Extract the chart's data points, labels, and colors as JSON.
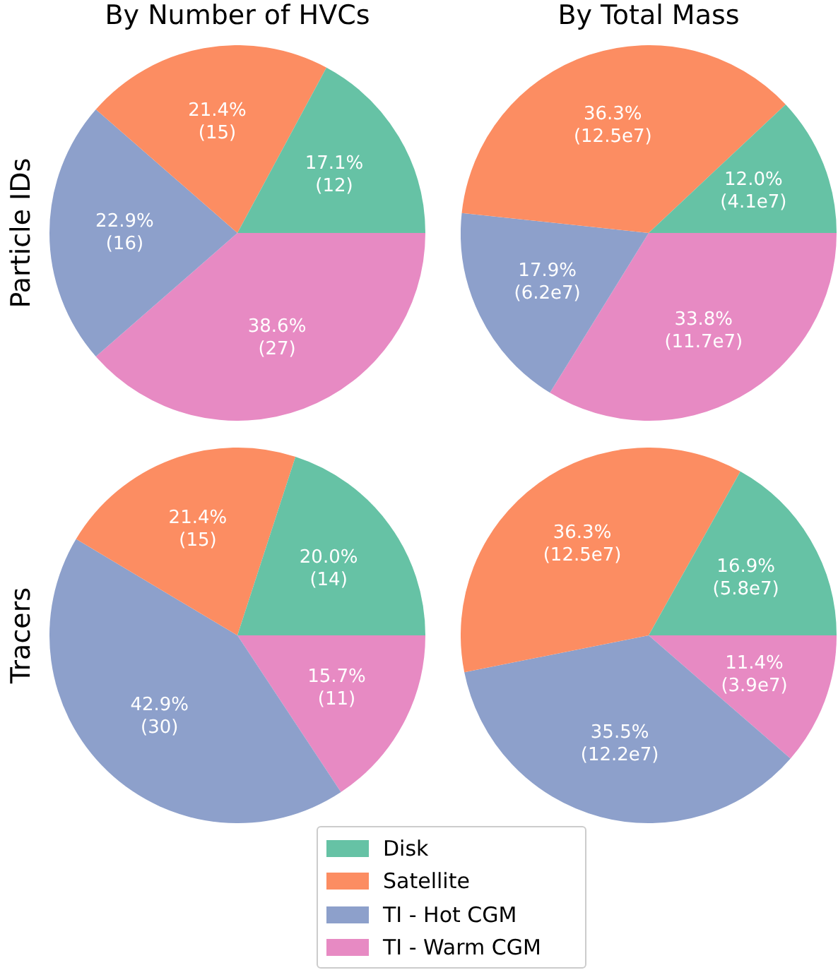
{
  "chart_data": [
    {
      "type": "pie",
      "title": "By Number of HVCs",
      "ylabel": "Particle IDs",
      "categories": [
        "Disk",
        "Satellite",
        "TI - Hot CGM",
        "TI - Warm CGM"
      ],
      "values": [
        12,
        15,
        16,
        27
      ],
      "colors": [
        "#66c2a5",
        "#fc8d62",
        "#8da0cb",
        "#e78ac3"
      ],
      "value_labels": [
        "17.1%\n(12)",
        "21.4%\n(15)",
        "22.9%\n(16)",
        "38.6%\n(27)"
      ],
      "legend": "bottom"
    },
    {
      "type": "pie",
      "title": "By Total Mass",
      "categories": [
        null,
        null,
        null,
        null
      ],
      "values": [
        12.0,
        36.3,
        17.9,
        33.8
      ],
      "colors": [
        "#66c2a5",
        "#fc8d62",
        "#8da0cb",
        "#e78ac3"
      ],
      "value_labels": [
        "12.0%\n(4.1e7)",
        "36.3%\n(12.5e7)",
        "17.9%\n(6.2e7)",
        "33.8%\n(11.7e7)"
      ]
    },
    {
      "type": "pie",
      "ylabel": "Tracers",
      "categories": [
        null,
        null,
        null,
        null
      ],
      "values": [
        14,
        15,
        30,
        11
      ],
      "colors": [
        "#66c2a5",
        "#fc8d62",
        "#8da0cb",
        "#e78ac3"
      ],
      "value_labels": [
        "20.0%\n(14)",
        "21.4%\n(15)",
        "42.9%\n(30)",
        "15.7%\n(11)"
      ]
    },
    {
      "type": "pie",
      "categories": [
        null,
        null,
        null,
        null
      ],
      "values": [
        16.9,
        36.3,
        35.5,
        11.4
      ],
      "colors": [
        "#66c2a5",
        "#fc8d62",
        "#8da0cb",
        "#e78ac3"
      ],
      "value_labels": [
        "16.9%\n(5.8e7)",
        "36.3%\n(12.5e7)",
        "35.5%\n(12.2e7)",
        "11.4%\n(3.9e7)"
      ]
    }
  ]
}
